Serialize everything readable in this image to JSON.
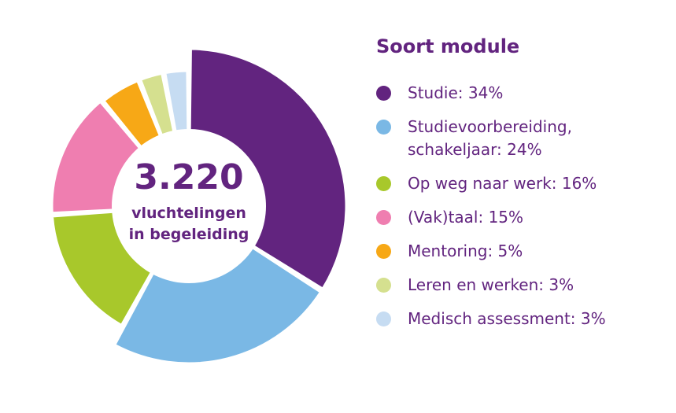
{
  "chart_data": {
    "type": "pie",
    "title": "Soort module",
    "center_value": "3.220",
    "center_caption_line1": "vluchtelingen",
    "center_caption_line2": "in begeleiding",
    "legend_placement": "right",
    "slices": [
      {
        "label": "Studie: 34%",
        "name": "Studie",
        "value": 34,
        "color": "#62247f"
      },
      {
        "label": "Studievoorbereiding,\nschakeljaar: 24%",
        "name": "Studievoorbereiding, schakeljaar",
        "value": 24,
        "color": "#7ab8e5"
      },
      {
        "label": "Op weg naar werk: 16%",
        "name": "Op weg naar werk",
        "value": 16,
        "color": "#a8c82b"
      },
      {
        "label": "(Vak)taal: 15%",
        "name": "(Vak)taal",
        "value": 15,
        "color": "#ef7eb0"
      },
      {
        "label": "Mentoring: 5%",
        "name": "Mentoring",
        "value": 5,
        "color": "#f7a816"
      },
      {
        "label": "Leren en werken: 3%",
        "name": "Leren en werken",
        "value": 3,
        "color": "#d5e08f"
      },
      {
        "label": "Medisch assessment: 3%",
        "name": "Medisch assessment",
        "value": 3,
        "color": "#c6dcf2"
      }
    ]
  }
}
